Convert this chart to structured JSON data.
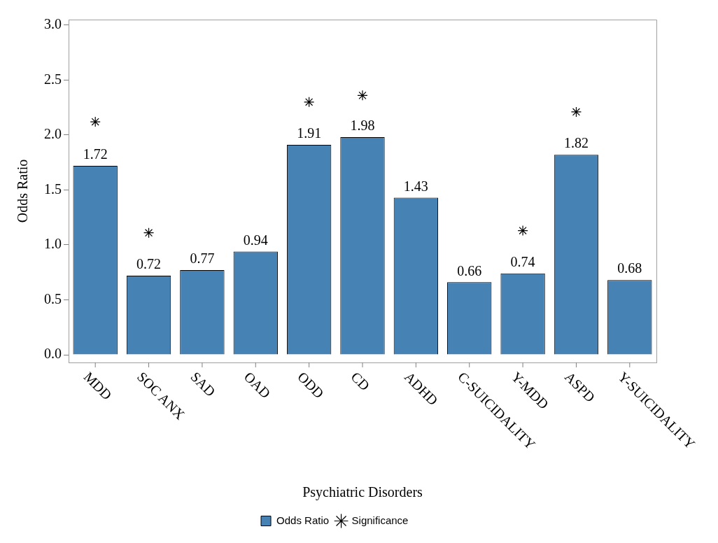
{
  "chart_data": {
    "type": "bar",
    "xlabel": "Psychiatric Disorders",
    "ylabel": "Odds Ratio",
    "categories": [
      "MDD",
      "SOC ANX",
      "SAD",
      "OAD",
      "ODD",
      "CD",
      "ADHD",
      "C-SUICIDALITY",
      "Y-MDD",
      "ASPD",
      "Y-SUICIDALITY"
    ],
    "series": [
      {
        "name": "Odds Ratio",
        "color": "#4682b4",
        "values": [
          1.72,
          0.72,
          0.77,
          0.94,
          1.91,
          1.98,
          1.43,
          0.66,
          0.74,
          1.82,
          0.68
        ],
        "value_labels": [
          "1.72",
          "0.72",
          "0.77",
          "0.94",
          "1.91",
          "1.98",
          "1.43",
          "0.66",
          "0.74",
          "1.82",
          "0.68"
        ]
      },
      {
        "name": "Significance",
        "type": "scatter",
        "marker": "cross",
        "color": "#000000",
        "values": [
          2.12,
          1.11,
          null,
          null,
          2.3,
          2.36,
          null,
          null,
          1.13,
          2.21,
          null
        ]
      }
    ],
    "ylim": [
      -0.07,
      3.05
    ],
    "yticks": [
      {
        "value": 0,
        "label": "0.0"
      },
      {
        "value": 0.5,
        "label": "0.5"
      },
      {
        "value": 1,
        "label": "1.0"
      },
      {
        "value": 1.5,
        "label": "1.5"
      },
      {
        "value": 2,
        "label": "2.0"
      },
      {
        "value": 2.5,
        "label": "2.5"
      },
      {
        "value": 3,
        "label": "3.0"
      }
    ],
    "grid": false,
    "legend": "bottom"
  }
}
